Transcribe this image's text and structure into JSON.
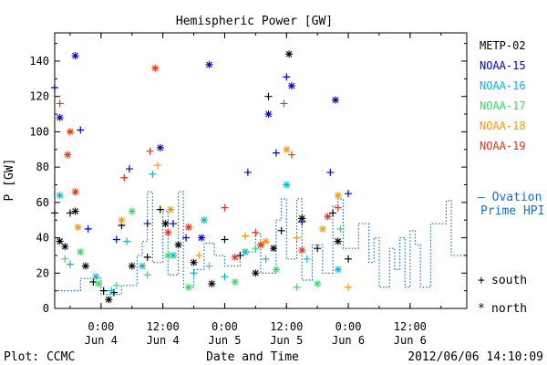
{
  "chart_data": {
    "type": "scatter",
    "title": "Hemispheric Power [GW]",
    "ylabel": "P [GW]",
    "xlabel": "Date and Time",
    "ylim": [
      0,
      156
    ],
    "xlim": [
      "2012-06-03T15:00",
      "2012-06-06T23:00"
    ],
    "yticks": [
      0,
      20,
      40,
      60,
      80,
      100,
      120,
      140
    ],
    "xticks": [
      {
        "t": "2012-06-04T00:00",
        "time": "0:00",
        "date": "Jun 4"
      },
      {
        "t": "2012-06-04T12:00",
        "time": "12:00",
        "date": "Jun 4"
      },
      {
        "t": "2012-06-05T00:00",
        "time": "0:00",
        "date": "Jun 5"
      },
      {
        "t": "2012-06-05T12:00",
        "time": "12:00",
        "date": "Jun 5"
      },
      {
        "t": "2012-06-06T00:00",
        "time": "0:00",
        "date": "Jun 6"
      },
      {
        "t": "2012-06-06T12:00",
        "time": "12:00",
        "date": "Jun 6"
      }
    ],
    "legend_position": "right",
    "series": [
      {
        "name": "METP-02",
        "color": "#000000",
        "points": [
          [
            "2012-06-03T15:00",
            54,
            "+"
          ],
          [
            "2012-06-03T16:00",
            38,
            "*"
          ],
          [
            "2012-06-03T17:00",
            35,
            "*"
          ],
          [
            "2012-06-03T18:00",
            54,
            "+"
          ],
          [
            "2012-06-03T19:00",
            55,
            "*"
          ],
          [
            "2012-06-03T21:00",
            24,
            "*"
          ],
          [
            "2012-06-03T22:30",
            15,
            "+"
          ],
          [
            "2012-06-04T00:30",
            10,
            "+"
          ],
          [
            "2012-06-04T01:30",
            5,
            "*"
          ],
          [
            "2012-06-04T02:30",
            9,
            "+"
          ],
          [
            "2012-06-04T04:00",
            47,
            "+"
          ],
          [
            "2012-06-04T06:00",
            24,
            "*"
          ],
          [
            "2012-06-04T09:00",
            29,
            "+"
          ],
          [
            "2012-06-04T11:30",
            56,
            "+"
          ],
          [
            "2012-06-04T12:30",
            48,
            "*"
          ],
          [
            "2012-06-04T15:00",
            36,
            "*"
          ],
          [
            "2012-06-04T18:00",
            26,
            "*"
          ],
          [
            "2012-06-04T21:30",
            14,
            "*"
          ],
          [
            "2012-06-05T00:00",
            39,
            "+"
          ],
          [
            "2012-06-05T03:00",
            30,
            "+"
          ],
          [
            "2012-06-05T06:00",
            20,
            "*"
          ],
          [
            "2012-06-05T08:30",
            120,
            "+"
          ],
          [
            "2012-06-05T09:30",
            34,
            "*"
          ],
          [
            "2012-06-05T11:00",
            44,
            "+"
          ],
          [
            "2012-06-05T12:30",
            144,
            "*"
          ],
          [
            "2012-06-05T15:00",
            51,
            "*"
          ],
          [
            "2012-06-05T18:00",
            34,
            "+"
          ],
          [
            "2012-06-05T21:00",
            54,
            "+"
          ],
          [
            "2012-06-05T22:00",
            38,
            "*"
          ],
          [
            "2012-06-06T00:00",
            28,
            "+"
          ]
        ]
      },
      {
        "name": "NOAA-15",
        "color": "#0000cc",
        "points": [
          [
            "2012-06-03T15:00",
            125,
            "+"
          ],
          [
            "2012-06-03T16:00",
            108,
            "*"
          ],
          [
            "2012-06-03T19:00",
            143,
            "*"
          ],
          [
            "2012-06-03T20:00",
            101,
            "+"
          ],
          [
            "2012-06-03T21:30",
            45,
            "+"
          ],
          [
            "2012-06-04T03:00",
            39,
            "+"
          ],
          [
            "2012-06-04T05:30",
            79,
            "+"
          ],
          [
            "2012-06-04T09:00",
            48,
            "+"
          ],
          [
            "2012-06-04T11:30",
            91,
            "*"
          ],
          [
            "2012-06-04T14:00",
            48,
            "+"
          ],
          [
            "2012-06-04T16:30",
            40,
            "+"
          ],
          [
            "2012-06-04T19:30",
            40,
            "*"
          ],
          [
            "2012-06-04T21:00",
            138,
            "*"
          ],
          [
            "2012-06-05T04:30",
            77,
            "+"
          ],
          [
            "2012-06-05T08:30",
            110,
            "*"
          ],
          [
            "2012-06-05T10:00",
            88,
            "+"
          ],
          [
            "2012-06-05T12:00",
            131,
            "+"
          ],
          [
            "2012-06-05T13:00",
            126,
            "*"
          ],
          [
            "2012-06-05T15:00",
            49,
            "+"
          ],
          [
            "2012-06-05T20:30",
            77,
            "+"
          ],
          [
            "2012-06-05T21:30",
            118,
            "*"
          ],
          [
            "2012-06-06T00:00",
            65,
            "+"
          ]
        ]
      },
      {
        "name": "NOAA-16",
        "color": "#00bbdd",
        "points": [
          [
            "2012-06-03T16:00",
            64,
            "*"
          ],
          [
            "2012-06-03T18:00",
            25,
            "+"
          ],
          [
            "2012-06-03T23:00",
            18,
            "*"
          ],
          [
            "2012-06-04T02:00",
            10,
            "+"
          ],
          [
            "2012-06-04T05:00",
            38,
            "+"
          ],
          [
            "2012-06-04T08:00",
            24,
            "*"
          ],
          [
            "2012-06-04T10:00",
            76,
            "+"
          ],
          [
            "2012-06-04T14:00",
            30,
            "*"
          ],
          [
            "2012-06-04T18:00",
            20,
            "+"
          ],
          [
            "2012-06-04T20:00",
            50,
            "*"
          ],
          [
            "2012-06-05T00:00",
            18,
            "+"
          ],
          [
            "2012-06-05T04:00",
            32,
            "*"
          ],
          [
            "2012-06-05T08:00",
            28,
            "+"
          ],
          [
            "2012-06-05T12:00",
            70,
            "*"
          ],
          [
            "2012-06-05T16:00",
            28,
            "+"
          ],
          [
            "2012-06-05T22:00",
            22,
            "*"
          ]
        ]
      },
      {
        "name": "NOAA-17",
        "color": "#33dd66",
        "points": [
          [
            "2012-06-03T17:00",
            28,
            "+"
          ],
          [
            "2012-06-03T20:00",
            32,
            "*"
          ],
          [
            "2012-06-03T23:30",
            14,
            "*"
          ],
          [
            "2012-06-04T03:00",
            13,
            "+"
          ],
          [
            "2012-06-04T06:00",
            55,
            "*"
          ],
          [
            "2012-06-04T09:00",
            19,
            "+"
          ],
          [
            "2012-06-04T13:00",
            30,
            "*"
          ],
          [
            "2012-06-04T17:00",
            12,
            "*"
          ],
          [
            "2012-06-04T21:00",
            24,
            "+"
          ],
          [
            "2012-06-05T02:00",
            15,
            "*"
          ],
          [
            "2012-06-05T06:00",
            34,
            "+"
          ],
          [
            "2012-06-05T10:00",
            22,
            "*"
          ],
          [
            "2012-06-05T14:00",
            12,
            "+"
          ],
          [
            "2012-06-05T18:00",
            14,
            "*"
          ],
          [
            "2012-06-05T22:30",
            45,
            "+"
          ]
        ]
      },
      {
        "name": "NOAA-18",
        "color": "#ff9900",
        "points": [
          [
            "2012-06-03T18:00",
            100,
            "+"
          ],
          [
            "2012-06-03T19:30",
            46,
            "*"
          ],
          [
            "2012-06-04T04:00",
            50,
            "*"
          ],
          [
            "2012-06-04T11:00",
            81,
            "+"
          ],
          [
            "2012-06-04T13:30",
            56,
            "*"
          ],
          [
            "2012-06-04T19:00",
            30,
            "+"
          ],
          [
            "2012-06-05T04:00",
            41,
            "+"
          ],
          [
            "2012-06-05T08:00",
            38,
            "*"
          ],
          [
            "2012-06-05T12:00",
            90,
            "*"
          ],
          [
            "2012-06-05T14:00",
            40,
            "+"
          ],
          [
            "2012-06-05T19:00",
            45,
            "*"
          ],
          [
            "2012-06-05T22:00",
            64,
            "*"
          ],
          [
            "2012-06-06T00:00",
            12,
            "+"
          ]
        ]
      },
      {
        "name": "NOAA-19",
        "color": "#ee3311",
        "points": [
          [
            "2012-06-03T16:00",
            116,
            "+"
          ],
          [
            "2012-06-03T17:30",
            87,
            "*"
          ],
          [
            "2012-06-03T18:00",
            100,
            "*"
          ],
          [
            "2012-06-03T19:00",
            66,
            "*"
          ],
          [
            "2012-06-04T04:30",
            74,
            "+"
          ],
          [
            "2012-06-04T09:30",
            89,
            "+"
          ],
          [
            "2012-06-04T10:30",
            136,
            "*"
          ],
          [
            "2012-06-04T13:00",
            43,
            "*"
          ],
          [
            "2012-06-04T17:00",
            46,
            "*"
          ],
          [
            "2012-06-05T00:00",
            57,
            "+"
          ],
          [
            "2012-06-05T02:00",
            29,
            "*"
          ],
          [
            "2012-06-05T06:00",
            43,
            "+"
          ],
          [
            "2012-06-05T07:00",
            36,
            "*"
          ],
          [
            "2012-06-05T11:30",
            116,
            "+"
          ],
          [
            "2012-06-05T13:00",
            87,
            "+"
          ],
          [
            "2012-06-05T15:00",
            33,
            "*"
          ],
          [
            "2012-06-05T20:00",
            52,
            "*"
          ],
          [
            "2012-06-05T22:00",
            57,
            "+"
          ]
        ]
      },
      {
        "name": "Ovation Prime HPI",
        "color": "#1a6fcc",
        "style": "dotted-step",
        "points": [
          [
            "2012-06-03T15:00",
            10
          ],
          [
            "2012-06-03T20:00",
            17
          ],
          [
            "2012-06-04T00:00",
            8
          ],
          [
            "2012-06-04T04:00",
            13
          ],
          [
            "2012-06-04T07:00",
            30
          ],
          [
            "2012-06-04T08:00",
            38
          ],
          [
            "2012-06-04T09:00",
            66
          ],
          [
            "2012-06-04T10:00",
            26
          ],
          [
            "2012-06-04T12:00",
            55
          ],
          [
            "2012-06-04T13:00",
            19
          ],
          [
            "2012-06-04T15:00",
            66
          ],
          [
            "2012-06-04T16:00",
            12
          ],
          [
            "2012-06-04T18:00",
            22
          ],
          [
            "2012-06-04T20:00",
            37
          ],
          [
            "2012-06-04T22:00",
            30
          ],
          [
            "2012-06-05T00:00",
            24
          ],
          [
            "2012-06-05T03:00",
            32
          ],
          [
            "2012-06-05T06:00",
            42
          ],
          [
            "2012-06-05T07:00",
            20
          ],
          [
            "2012-06-05T10:00",
            50
          ],
          [
            "2012-06-05T11:00",
            62
          ],
          [
            "2012-06-05T12:00",
            28
          ],
          [
            "2012-06-05T14:00",
            62
          ],
          [
            "2012-06-05T15:00",
            16
          ],
          [
            "2012-06-05T17:00",
            36
          ],
          [
            "2012-06-05T19:00",
            20
          ],
          [
            "2012-06-05T21:00",
            58
          ],
          [
            "2012-06-05T22:00",
            62
          ],
          [
            "2012-06-05T23:00",
            34
          ],
          [
            "2012-06-06T02:00",
            48
          ],
          [
            "2012-06-06T04:00",
            26
          ],
          [
            "2012-06-06T05:00",
            40
          ],
          [
            "2012-06-06T06:00",
            12
          ],
          [
            "2012-06-06T08:00",
            34
          ],
          [
            "2012-06-06T09:00",
            22
          ],
          [
            "2012-06-06T10:00",
            40
          ],
          [
            "2012-06-06T11:00",
            12
          ],
          [
            "2012-06-06T12:00",
            44
          ],
          [
            "2012-06-06T13:00",
            36
          ],
          [
            "2012-06-06T14:00",
            12
          ],
          [
            "2012-06-06T16:00",
            48
          ],
          [
            "2012-06-06T19:00",
            61
          ],
          [
            "2012-06-06T20:00",
            30
          ],
          [
            "2012-06-06T23:00",
            30
          ]
        ]
      }
    ],
    "hpi_label_line1": "— Ovation",
    "hpi_label_line2": "Prime HPI",
    "symbol_key": [
      {
        "symbol": "+",
        "label": "south"
      },
      {
        "symbol": "*",
        "label": "north"
      }
    ]
  },
  "footer": {
    "plot_credit": "Plot: CCMC",
    "timestamp": "2012/06/06 14:10:09"
  }
}
